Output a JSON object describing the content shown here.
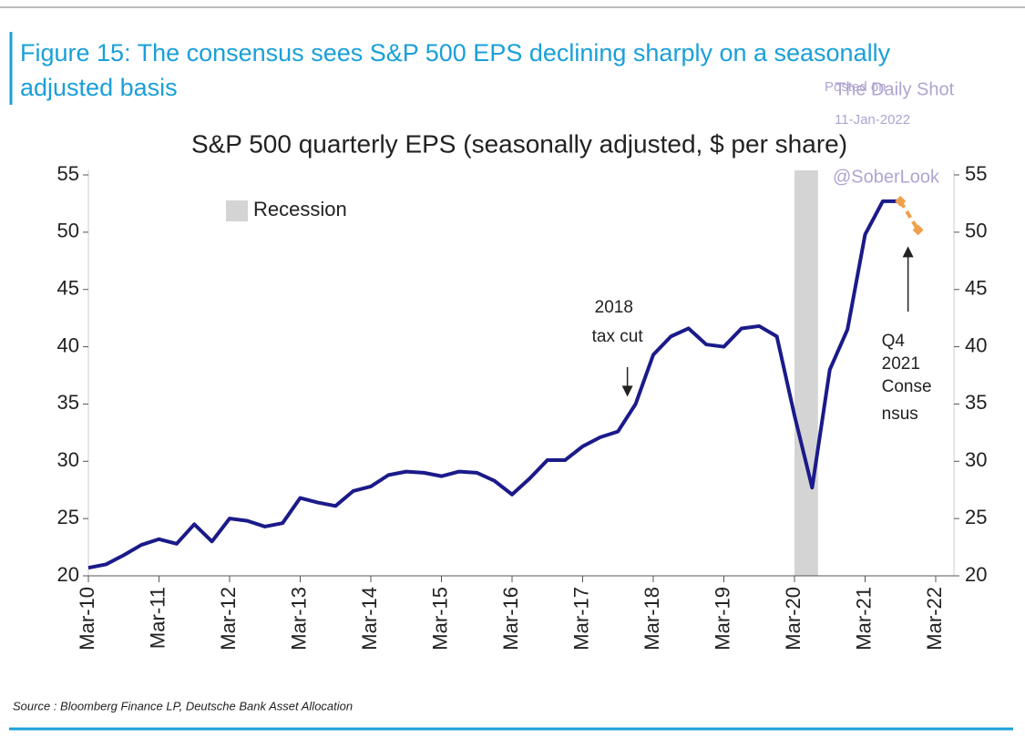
{
  "chart_data": {
    "type": "line",
    "figure_title": [
      "Figure 15: The consensus sees S&P 500 EPS declining sharply on a seasonally",
      "adjusted basis"
    ],
    "title": "S&P 500 quarterly EPS (seasonally adjusted, $ per share)",
    "watermark": [
      "Posted on",
      "The Daily Shot",
      "11-Jan-2022",
      "@SoberLook"
    ],
    "source": "Source : Bloomberg Finance LP, Deutsche Bank Asset Allocation",
    "series": [
      {
        "name": "EPS",
        "color": "#1b1a8a",
        "x": [
          "Mar-10",
          "Jun-10",
          "Sep-10",
          "Dec-10",
          "Mar-11",
          "Jun-11",
          "Sep-11",
          "Dec-11",
          "Mar-12",
          "Jun-12",
          "Sep-12",
          "Dec-12",
          "Mar-13",
          "Jun-13",
          "Sep-13",
          "Dec-13",
          "Mar-14",
          "Jun-14",
          "Sep-14",
          "Dec-14",
          "Mar-15",
          "Jun-15",
          "Sep-15",
          "Dec-15",
          "Mar-16",
          "Jun-16",
          "Sep-16",
          "Dec-16",
          "Mar-17",
          "Jun-17",
          "Sep-17",
          "Dec-17",
          "Mar-18",
          "Jun-18",
          "Sep-18",
          "Dec-18",
          "Mar-19",
          "Jun-19",
          "Sep-19",
          "Dec-19",
          "Mar-20",
          "Jun-20",
          "Sep-20",
          "Dec-20",
          "Mar-21",
          "Jun-21",
          "Sep-21"
        ],
        "values": [
          20.7,
          21.0,
          21.8,
          22.7,
          23.2,
          22.8,
          24.5,
          23.0,
          25.0,
          24.8,
          24.3,
          24.6,
          26.8,
          26.4,
          26.1,
          27.4,
          27.8,
          28.8,
          29.1,
          29.0,
          28.7,
          29.1,
          29.0,
          28.3,
          27.1,
          28.5,
          30.1,
          30.1,
          31.3,
          32.1,
          32.6,
          35.0,
          39.3,
          40.9,
          41.6,
          40.2,
          40.0,
          41.6,
          41.8,
          40.9,
          34.0,
          27.7,
          38.0,
          41.5,
          49.8,
          52.7,
          52.7
        ]
      },
      {
        "name": "Consensus",
        "color": "#f0a04c",
        "dashed": true,
        "x": [
          "Sep-21",
          "Dec-21"
        ],
        "values": [
          52.7,
          50.2
        ]
      }
    ],
    "recession": {
      "name": "Recession",
      "color": "#d4d4d4",
      "start": "Mar-20",
      "end": "Jul-20"
    },
    "annotations": [
      {
        "lines": [
          "2018",
          "tax cut"
        ],
        "x": "Dec-17",
        "y": 35.0
      },
      {
        "lines": [
          "Q4",
          "2021",
          "Conse",
          "nsus"
        ],
        "x": "Dec-21",
        "y": 50.2
      }
    ],
    "xlim": [
      "Mar-10",
      "Mar-22"
    ],
    "xticks": [
      "Mar-10",
      "Mar-11",
      "Mar-12",
      "Mar-13",
      "Mar-14",
      "Mar-15",
      "Mar-16",
      "Mar-17",
      "Mar-18",
      "Mar-19",
      "Mar-20",
      "Mar-21",
      "Mar-22"
    ],
    "ylim": [
      20,
      55
    ],
    "yticks": [
      20,
      25,
      30,
      35,
      40,
      45,
      50,
      55
    ]
  }
}
